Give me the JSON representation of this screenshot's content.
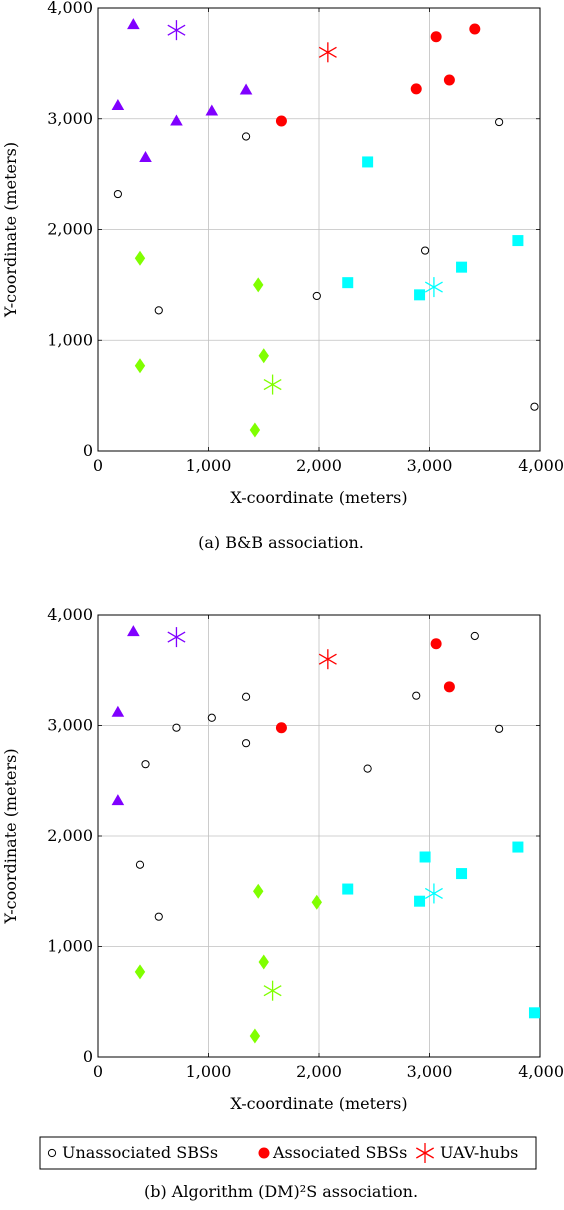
{
  "chart_data": [
    {
      "type": "scatter",
      "caption": "(a) B&B association.",
      "xlabel": "X-coordinate (meters)",
      "ylabel": "Y-coordinate (meters)",
      "xlim": [
        0,
        4000
      ],
      "ylim": [
        0,
        4000
      ],
      "xticks": [
        "0",
        "1,000",
        "2,000",
        "3,000",
        "4,000"
      ],
      "yticks": [
        "0",
        "1,000",
        "2,000",
        "3,000",
        "4,000"
      ],
      "grid": true,
      "unassociated": [
        [
          180,
          2320
        ],
        [
          550,
          1270
        ],
        [
          1340,
          2840
        ],
        [
          1980,
          1400
        ],
        [
          2960,
          1810
        ],
        [
          3630,
          2970
        ],
        [
          3950,
          400
        ]
      ],
      "associated": [
        [
          1660,
          2980
        ],
        [
          2880,
          3270
        ],
        [
          3060,
          3740
        ],
        [
          3180,
          3350
        ],
        [
          3410,
          3810
        ]
      ],
      "uav_hubs": [
        {
          "x": 710,
          "y": 3800,
          "color": "#8000ff"
        },
        {
          "x": 2080,
          "y": 3600,
          "color": "#ff0000"
        },
        {
          "x": 1580,
          "y": 600,
          "color": "#80ff00"
        },
        {
          "x": 3040,
          "y": 1480,
          "color": "#00ffff"
        }
      ],
      "clusters": [
        {
          "color": "#8000ff",
          "shape": "triangle",
          "points": [
            [
              320,
              3850
            ],
            [
              180,
              3120
            ],
            [
              710,
              2980
            ],
            [
              1030,
              3070
            ],
            [
              1340,
              3260
            ],
            [
              430,
              2650
            ]
          ]
        },
        {
          "color": "#80ff00",
          "shape": "diamond",
          "points": [
            [
              380,
              1740
            ],
            [
              1450,
              1500
            ],
            [
              1500,
              860
            ],
            [
              380,
              770
            ],
            [
              1420,
              190
            ]
          ]
        },
        {
          "color": "#00ffff",
          "shape": "square",
          "points": [
            [
              2440,
              2610
            ],
            [
              2260,
              1520
            ],
            [
              2910,
              1410
            ],
            [
              3290,
              1660
            ],
            [
              3800,
              1900
            ]
          ]
        }
      ]
    },
    {
      "type": "scatter",
      "caption": "(b) Algorithm (DM)²S association.",
      "xlabel": "X-coordinate (meters)",
      "ylabel": "Y-coordinate (meters)",
      "xlim": [
        0,
        4000
      ],
      "ylim": [
        0,
        4000
      ],
      "xticks": [
        "0",
        "1,000",
        "2,000",
        "3,000",
        "4,000"
      ],
      "yticks": [
        "0",
        "1,000",
        "2,000",
        "3,000",
        "4,000"
      ],
      "grid": true,
      "unassociated": [
        [
          710,
          2980
        ],
        [
          1030,
          3070
        ],
        [
          1340,
          3260
        ],
        [
          1340,
          2840
        ],
        [
          430,
          2650
        ],
        [
          380,
          1740
        ],
        [
          550,
          1270
        ],
        [
          2440,
          2610
        ],
        [
          2880,
          3270
        ],
        [
          3410,
          3810
        ],
        [
          3630,
          2970
        ]
      ],
      "associated": [
        [
          1660,
          2980
        ],
        [
          3060,
          3740
        ],
        [
          3180,
          3350
        ]
      ],
      "uav_hubs": [
        {
          "x": 710,
          "y": 3800,
          "color": "#8000ff"
        },
        {
          "x": 2080,
          "y": 3600,
          "color": "#ff0000"
        },
        {
          "x": 1580,
          "y": 600,
          "color": "#80ff00"
        },
        {
          "x": 3040,
          "y": 1480,
          "color": "#00ffff"
        }
      ],
      "clusters": [
        {
          "color": "#8000ff",
          "shape": "triangle",
          "points": [
            [
              320,
              3850
            ],
            [
              180,
              3120
            ],
            [
              180,
              2320
            ]
          ]
        },
        {
          "color": "#80ff00",
          "shape": "diamond",
          "points": [
            [
              1450,
              1500
            ],
            [
              1980,
              1400
            ],
            [
              1500,
              860
            ],
            [
              380,
              770
            ],
            [
              1420,
              190
            ]
          ]
        },
        {
          "color": "#00ffff",
          "shape": "square",
          "points": [
            [
              2260,
              1520
            ],
            [
              2910,
              1410
            ],
            [
              2960,
              1810
            ],
            [
              3290,
              1660
            ],
            [
              3800,
              1900
            ],
            [
              3950,
              400
            ]
          ]
        }
      ]
    }
  ],
  "legend": {
    "unassociated": "Unassociated SBSs",
    "associated": "Associated SBSs",
    "uav": "UAV-hubs",
    "associated_color": "#ff0000",
    "uav_color": "#ff0000"
  }
}
